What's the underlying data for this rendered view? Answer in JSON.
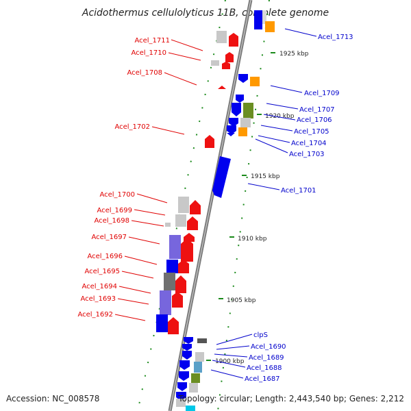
{
  "title": "Acidothermus cellulolyticus 11B, complete genome",
  "accession": "Accession: NC_008578",
  "summary": "Topology: circular; Length: 2,443,540 bp; Genes: 2,212",
  "colors": {
    "reverse_label": "#e00000",
    "forward_label": "#0000cc",
    "backbone": "#7a7a7a",
    "tick_marks": "#1a8a1a"
  },
  "kbp_ticks": [
    "1925 kbp",
    "1920 kbp",
    "1915 kbp",
    "1910 kbp",
    "1905 kbp",
    "1900 kbp"
  ],
  "left_labels": [
    "Acel_1711",
    "Acel_1710",
    "Acel_1708",
    "Acel_1702",
    "Acel_1700",
    "Acel_1699",
    "Acel_1698",
    "Acel_1697",
    "Acel_1696",
    "Acel_1695",
    "Acel_1694",
    "Acel_1693",
    "Acel_1692"
  ],
  "right_labels": [
    "Acel_1713",
    "Acel_1709",
    "Acel_1707",
    "Acel_1706",
    "Acel_1705",
    "Acel_1704",
    "Acel_1703",
    "Acel_1701",
    "clpS",
    "Acel_1690",
    "Acel_1689",
    "Acel_1688",
    "Acel_1687"
  ]
}
